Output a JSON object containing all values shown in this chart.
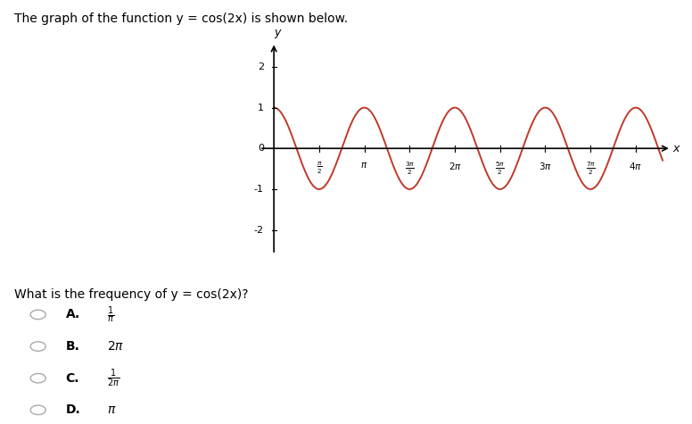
{
  "title": "The graph of the function y = cos(2x) is shown below.",
  "curve_color": "#c0392b",
  "curve_linewidth": 1.4,
  "background_color": "#ffffff",
  "xlim": [
    -0.5,
    13.8
  ],
  "ylim": [
    -2.6,
    2.6
  ],
  "x_ticks": [
    1.5707963,
    3.14159265,
    4.71238898,
    6.28318531,
    7.85398163,
    9.42477796,
    10.99557429,
    12.56637061
  ],
  "y_ticks": [
    -2,
    -1,
    1,
    2
  ],
  "y_tick_labels": [
    "-2",
    "-1",
    "1",
    "2"
  ],
  "x_start": 0.0,
  "x_end": 13.5,
  "question": "What is the frequency of y = cos(2x)?",
  "fig_width": 7.76,
  "fig_height": 4.75
}
